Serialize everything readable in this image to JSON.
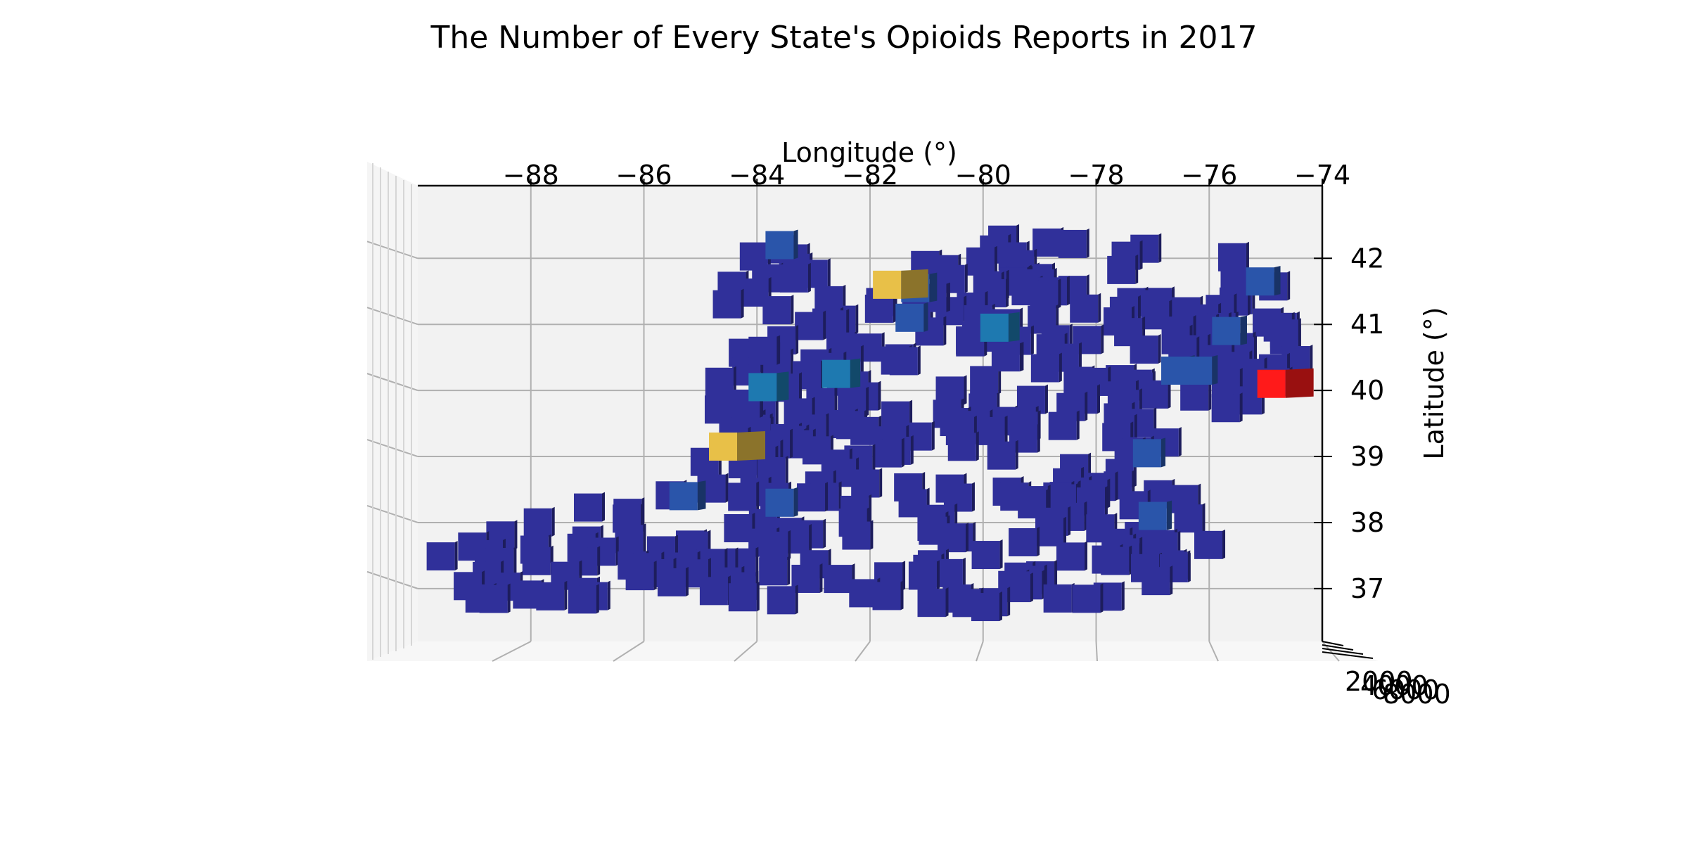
{
  "colors": {
    "pane": "#f2f2f2",
    "grid": "#b0b0b0",
    "axis_line": "#000000",
    "colormap": [
      "#30309a",
      "#2a55aa",
      "#1e79b0",
      "#22a0b5",
      "#3cc0c8",
      "#76d6a6",
      "#e8c048",
      "#f08030",
      "#ff1a1a"
    ]
  },
  "chart_data": {
    "type": "3d-bar",
    "title": "The Number of Every State's Opioids Reports in 2017",
    "xlabel": "Longitude (°)",
    "ylabel": "Latitude (°)",
    "zlabel": "",
    "xlim": [
      -90,
      -74
    ],
    "ylim": [
      36.2,
      43.1
    ],
    "zlim": [
      0,
      8000
    ],
    "xticks": [
      "−88",
      "−86",
      "−84",
      "−82",
      "−80",
      "−78",
      "−76",
      "−74"
    ],
    "yticks": [
      "37",
      "38",
      "39",
      "40",
      "41",
      "42"
    ],
    "zticks": [
      "2000",
      "4000",
      "6000",
      "8000"
    ],
    "grid": true,
    "legend": "none",
    "highlights": [
      {
        "x": -84.6,
        "y": 39.15,
        "value": 6200
      },
      {
        "x": -74.9,
        "y": 40.1,
        "value": 7800
      },
      {
        "x": -81.7,
        "y": 41.6,
        "value": 5600
      },
      {
        "x": -83.9,
        "y": 40.05,
        "value": 2500
      },
      {
        "x": -82.6,
        "y": 40.25,
        "value": 2100
      },
      {
        "x": -79.8,
        "y": 40.95,
        "value": 2300
      },
      {
        "x": -85.3,
        "y": 38.4,
        "value": 1700
      },
      {
        "x": -81.2,
        "y": 41.55,
        "value": 1600
      },
      {
        "x": -75.7,
        "y": 40.9,
        "value": 1400
      },
      {
        "x": -75.1,
        "y": 41.65,
        "value": 1300
      },
      {
        "x": -76.2,
        "y": 40.3,
        "value": 1200
      },
      {
        "x": -76.6,
        "y": 40.3,
        "value": 1100
      },
      {
        "x": -77.0,
        "y": 38.1,
        "value": 1050
      },
      {
        "x": -77.1,
        "y": 39.05,
        "value": 900
      },
      {
        "x": -83.6,
        "y": 42.2,
        "value": 900
      },
      {
        "x": -83.6,
        "y": 38.3,
        "value": 900
      },
      {
        "x": -81.3,
        "y": 41.1,
        "value": 900
      },
      {
        "x": -80.9,
        "y": 41.4,
        "value": 800
      },
      {
        "x": -79.6,
        "y": 40.5,
        "value": 800
      },
      {
        "x": -83.9,
        "y": 40.6,
        "value": 700
      },
      {
        "x": -84.2,
        "y": 39.8,
        "value": 700
      }
    ],
    "background_series": {
      "description_free": true,
      "count": 330,
      "value_range": [
        50,
        500
      ],
      "region": [
        [
          -89.7,
          37.2
        ],
        [
          -89.7,
          37.6
        ],
        [
          -88.9,
          37.7
        ],
        [
          -88.2,
          38.1
        ],
        [
          -87.6,
          38.0
        ],
        [
          -86.8,
          38.3
        ],
        [
          -86.1,
          38.1
        ],
        [
          -85.7,
          38.7
        ],
        [
          -84.8,
          39.1
        ],
        [
          -84.8,
          40.5
        ],
        [
          -84.7,
          41.0
        ],
        [
          -84.9,
          41.7
        ],
        [
          -84.4,
          42.1
        ],
        [
          -83.6,
          42.2
        ],
        [
          -82.9,
          42.0
        ],
        [
          -81.3,
          41.9
        ],
        [
          -80.5,
          42.2
        ],
        [
          -79.8,
          42.4
        ],
        [
          -78.9,
          42.3
        ],
        [
          -77.9,
          42.2
        ],
        [
          -76.9,
          42.2
        ],
        [
          -75.8,
          42.1
        ],
        [
          -74.9,
          41.8
        ],
        [
          -74.6,
          41.4
        ],
        [
          -74.4,
          40.9
        ],
        [
          -74.3,
          40.3
        ],
        [
          -75.1,
          39.9
        ],
        [
          -75.9,
          39.6
        ],
        [
          -76.3,
          38.9
        ],
        [
          -76.0,
          38.1
        ],
        [
          -75.9,
          37.5
        ],
        [
          -76.6,
          37.0
        ],
        [
          -78.1,
          36.8
        ],
        [
          -80.2,
          36.7
        ],
        [
          -82.1,
          36.8
        ],
        [
          -83.9,
          36.8
        ],
        [
          -85.7,
          36.8
        ],
        [
          -87.4,
          36.8
        ],
        [
          -88.9,
          36.8
        ],
        [
          -89.7,
          37.2
        ]
      ],
      "holes": [
        [
          [
            -77.8,
            41.8
          ],
          [
            -76.7,
            41.8
          ],
          [
            -76.7,
            41.45
          ],
          [
            -77.8,
            41.45
          ]
        ],
        [
          [
            -80.3,
            38.05
          ],
          [
            -79.6,
            38.05
          ],
          [
            -79.6,
            37.7
          ],
          [
            -80.3,
            37.7
          ]
        ]
      ]
    }
  }
}
